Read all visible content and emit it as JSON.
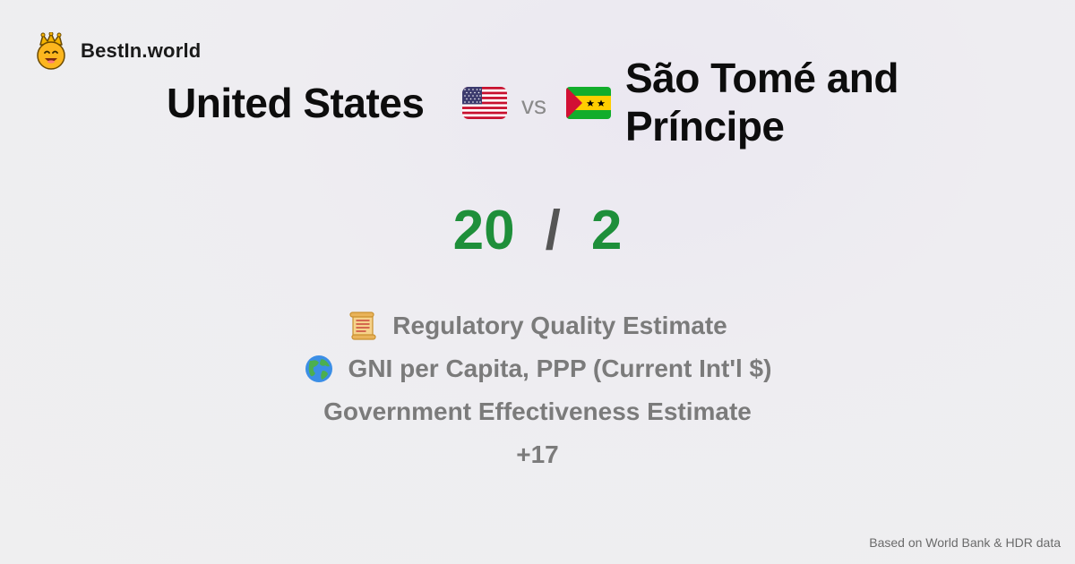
{
  "brand": {
    "name": "BestIn.world",
    "logo_icon": "smiling-crown-face-icon"
  },
  "comparison": {
    "country_a": {
      "name": "United States",
      "flag_icon": "us-flag-icon",
      "score": "20"
    },
    "vs_label": "vs",
    "country_b": {
      "name": "São Tomé and Príncipe",
      "flag_icon": "sao-tome-flag-icon",
      "score": "2"
    },
    "separator": "/"
  },
  "metrics": [
    {
      "label": "Regulatory Quality Estimate",
      "icon": "scroll-icon"
    },
    {
      "label": "GNI per Capita, PPP (Current Int'l $)",
      "icon": "globe-icon"
    },
    {
      "label": "Government Effectiveness Estimate",
      "icon": ""
    },
    {
      "label": "+17",
      "icon": ""
    }
  ],
  "footer": {
    "note": "Based on World Bank & HDR data"
  },
  "colors": {
    "score": "#1e8f3a",
    "metric_text": "#7b7b7b",
    "title_text": "#0d0d0d"
  }
}
